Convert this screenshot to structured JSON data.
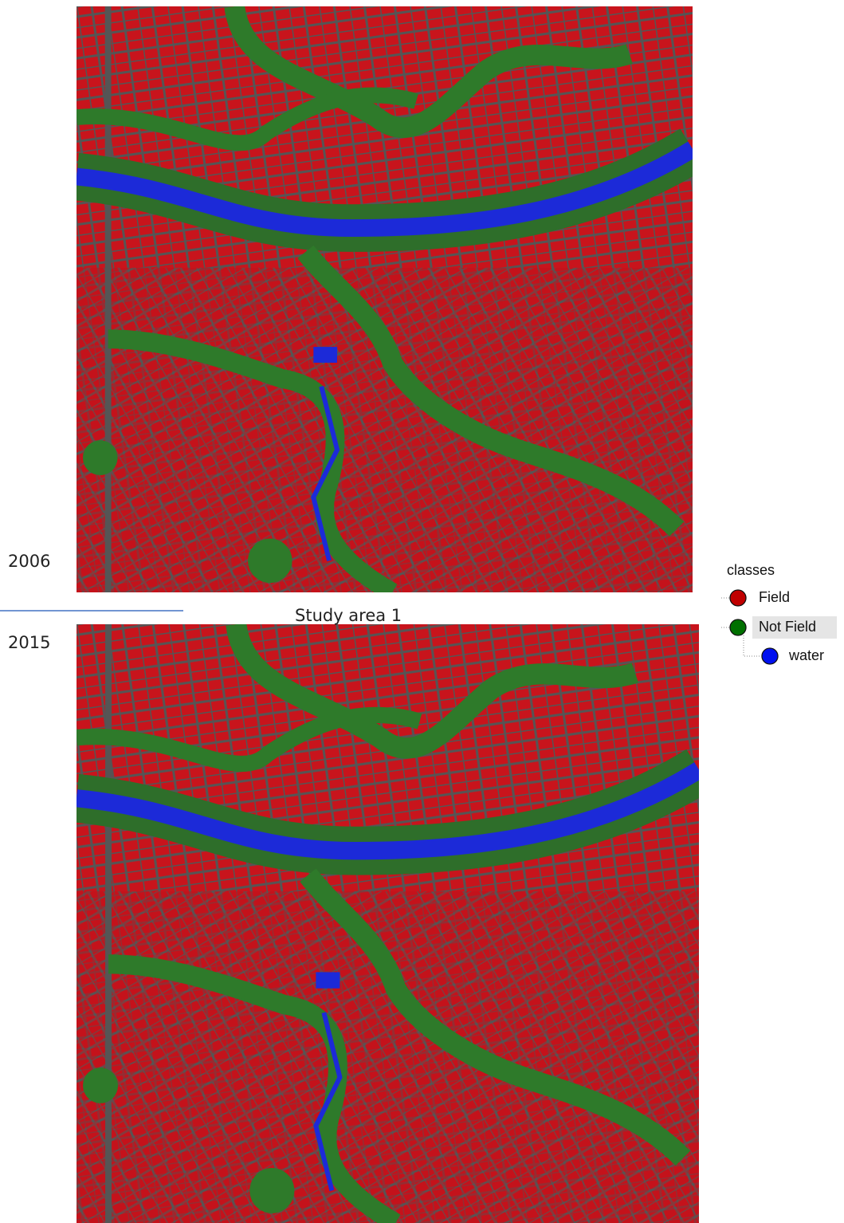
{
  "labels": {
    "year_top": "2006",
    "year_bottom": "2015",
    "caption": "Study area 1"
  },
  "legend": {
    "title": "classes",
    "items": [
      {
        "label": "Field",
        "color": "#c00000"
      },
      {
        "label": "Not Field",
        "color": "#007000"
      },
      {
        "label": "water",
        "color": "#0010f0"
      }
    ]
  }
}
